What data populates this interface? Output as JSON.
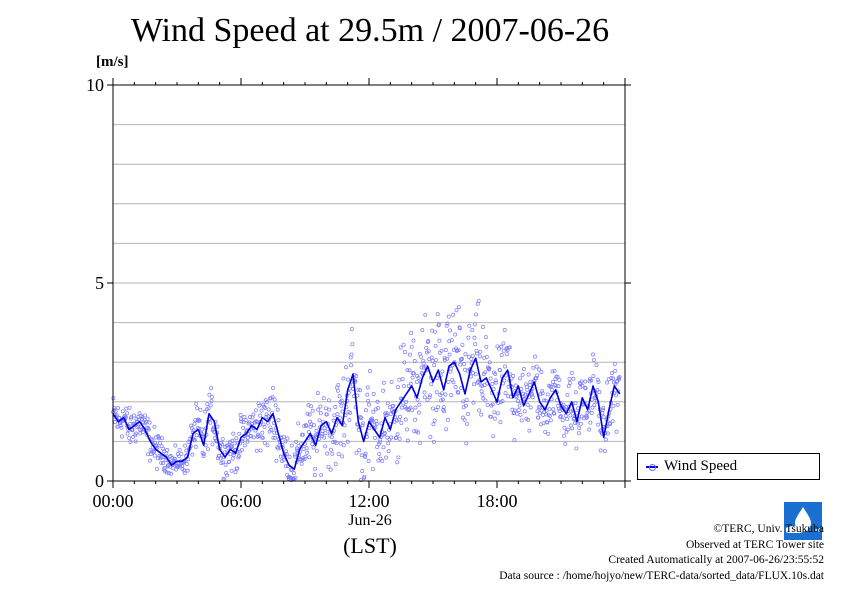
{
  "chart_data": {
    "type": "scatter",
    "title": "Wind Speed at 29.5m / 2007-06-26",
    "ylabel": "[m/s]",
    "xlabel": "(LST)",
    "date_label": "Jun-26",
    "ylim": [
      0,
      10
    ],
    "y_ticks": [
      "0",
      "5",
      "10"
    ],
    "x_ticks": [
      "00:00",
      "06:00",
      "12:00",
      "18:00"
    ],
    "xlim_hours": [
      0,
      24
    ],
    "grid": true,
    "legend_position": "bottom-right",
    "series": [
      {
        "name": "Wind Speed",
        "color": "#0000dd",
        "scatter_color": "#7a7aff",
        "x": [
          0,
          0.25,
          0.5,
          0.75,
          1,
          1.25,
          1.5,
          1.75,
          2,
          2.25,
          2.5,
          2.75,
          3,
          3.25,
          3.5,
          3.75,
          4,
          4.25,
          4.5,
          4.75,
          5,
          5.25,
          5.5,
          5.75,
          6,
          6.25,
          6.5,
          6.75,
          7,
          7.25,
          7.5,
          7.75,
          8,
          8.25,
          8.5,
          8.75,
          9,
          9.25,
          9.5,
          9.75,
          10,
          10.25,
          10.5,
          10.75,
          11,
          11.25,
          11.5,
          11.75,
          12,
          12.25,
          12.5,
          12.75,
          13,
          13.25,
          13.5,
          13.75,
          14,
          14.25,
          14.5,
          14.75,
          15,
          15.25,
          15.5,
          15.75,
          16,
          16.25,
          16.5,
          16.75,
          17,
          17.25,
          17.5,
          17.75,
          18,
          18.25,
          18.5,
          18.75,
          19,
          19.25,
          19.5,
          19.75,
          20,
          20.25,
          20.5,
          20.75,
          21,
          21.25,
          21.5,
          21.75,
          22,
          22.25,
          22.5,
          22.75,
          23,
          23.25,
          23.5,
          23.75
        ],
        "y": [
          1.7,
          1.5,
          1.6,
          1.3,
          1.4,
          1.5,
          1.3,
          1.0,
          0.8,
          0.7,
          0.6,
          0.4,
          0.5,
          0.5,
          0.6,
          1.2,
          1.3,
          0.9,
          1.7,
          1.5,
          0.8,
          0.6,
          0.8,
          0.7,
          1.1,
          1.2,
          1.4,
          1.3,
          1.6,
          1.5,
          1.7,
          1.2,
          0.7,
          0.4,
          0.3,
          0.8,
          1.0,
          1.2,
          0.9,
          1.4,
          1.5,
          1.2,
          1.6,
          1.4,
          2.3,
          2.7,
          1.5,
          1.0,
          1.5,
          1.3,
          1.1,
          1.6,
          1.3,
          1.8,
          2.0,
          2.2,
          2.4,
          2.1,
          2.6,
          2.9,
          2.5,
          2.8,
          2.3,
          2.9,
          3.0,
          2.7,
          2.2,
          2.8,
          3.1,
          2.5,
          2.6,
          2.3,
          2.0,
          2.6,
          2.8,
          2.1,
          2.4,
          1.9,
          2.2,
          2.5,
          2.0,
          1.8,
          2.1,
          2.3,
          1.9,
          1.7,
          2.0,
          1.5,
          2.1,
          1.8,
          2.4,
          2.0,
          1.1,
          1.8,
          2.4,
          2.2
        ],
        "spread": [
          0.3,
          0.3,
          0.3,
          0.3,
          0.3,
          0.3,
          0.3,
          0.3,
          0.3,
          0.25,
          0.2,
          0.2,
          0.2,
          0.2,
          0.25,
          0.3,
          0.4,
          0.4,
          0.4,
          0.4,
          0.3,
          0.3,
          0.3,
          0.3,
          0.3,
          0.35,
          0.4,
          0.4,
          0.45,
          0.45,
          0.45,
          0.4,
          0.4,
          0.35,
          0.35,
          0.45,
          0.5,
          0.55,
          0.55,
          0.6,
          0.6,
          0.6,
          0.65,
          0.7,
          0.8,
          0.85,
          0.75,
          0.7,
          0.7,
          0.7,
          0.7,
          0.75,
          0.75,
          0.8,
          0.8,
          0.85,
          0.85,
          0.85,
          0.9,
          0.95,
          0.95,
          0.95,
          0.95,
          1.0,
          1.0,
          0.95,
          0.9,
          0.9,
          0.9,
          0.85,
          0.8,
          0.75,
          0.7,
          0.7,
          0.7,
          0.65,
          0.6,
          0.55,
          0.55,
          0.55,
          0.5,
          0.45,
          0.45,
          0.45,
          0.45,
          0.45,
          0.45,
          0.45,
          0.45,
          0.45,
          0.5,
          0.5,
          0.45,
          0.45,
          0.5,
          0.5
        ]
      }
    ]
  },
  "credits": {
    "copyright": "©TERC, Univ. Tsukuba",
    "observed": "Observed at TERC Tower site",
    "created": "Created Automatically at 2007-06-26/23:55:52",
    "source": "Data source : /home/hojyo/new/TERC-data/sorted_data/FLUX.10s.dat"
  },
  "logo": {
    "text": "TERC",
    "color": "#1a6fd0"
  }
}
